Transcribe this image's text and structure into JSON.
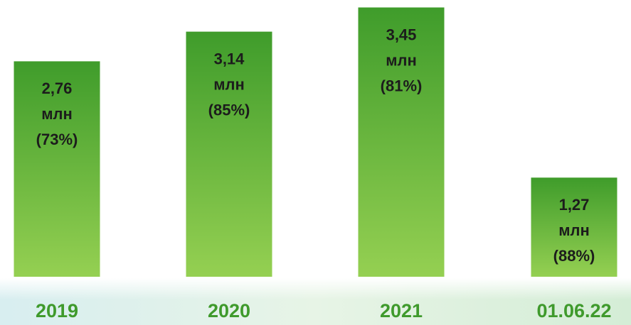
{
  "chart_data": {
    "type": "bar",
    "categories": [
      "2019",
      "2020",
      "2021",
      "01.06.22"
    ],
    "values": [
      2.76,
      3.14,
      3.45,
      1.27
    ],
    "value_labels": [
      "2,76",
      "3,14",
      "3,45",
      "1,27"
    ],
    "unit": "млн",
    "share_labels": [
      "(73%)",
      "(85%)",
      "(81%)",
      "(88%)"
    ],
    "ylim": [
      0,
      3.5
    ],
    "color": "#5aae35"
  }
}
